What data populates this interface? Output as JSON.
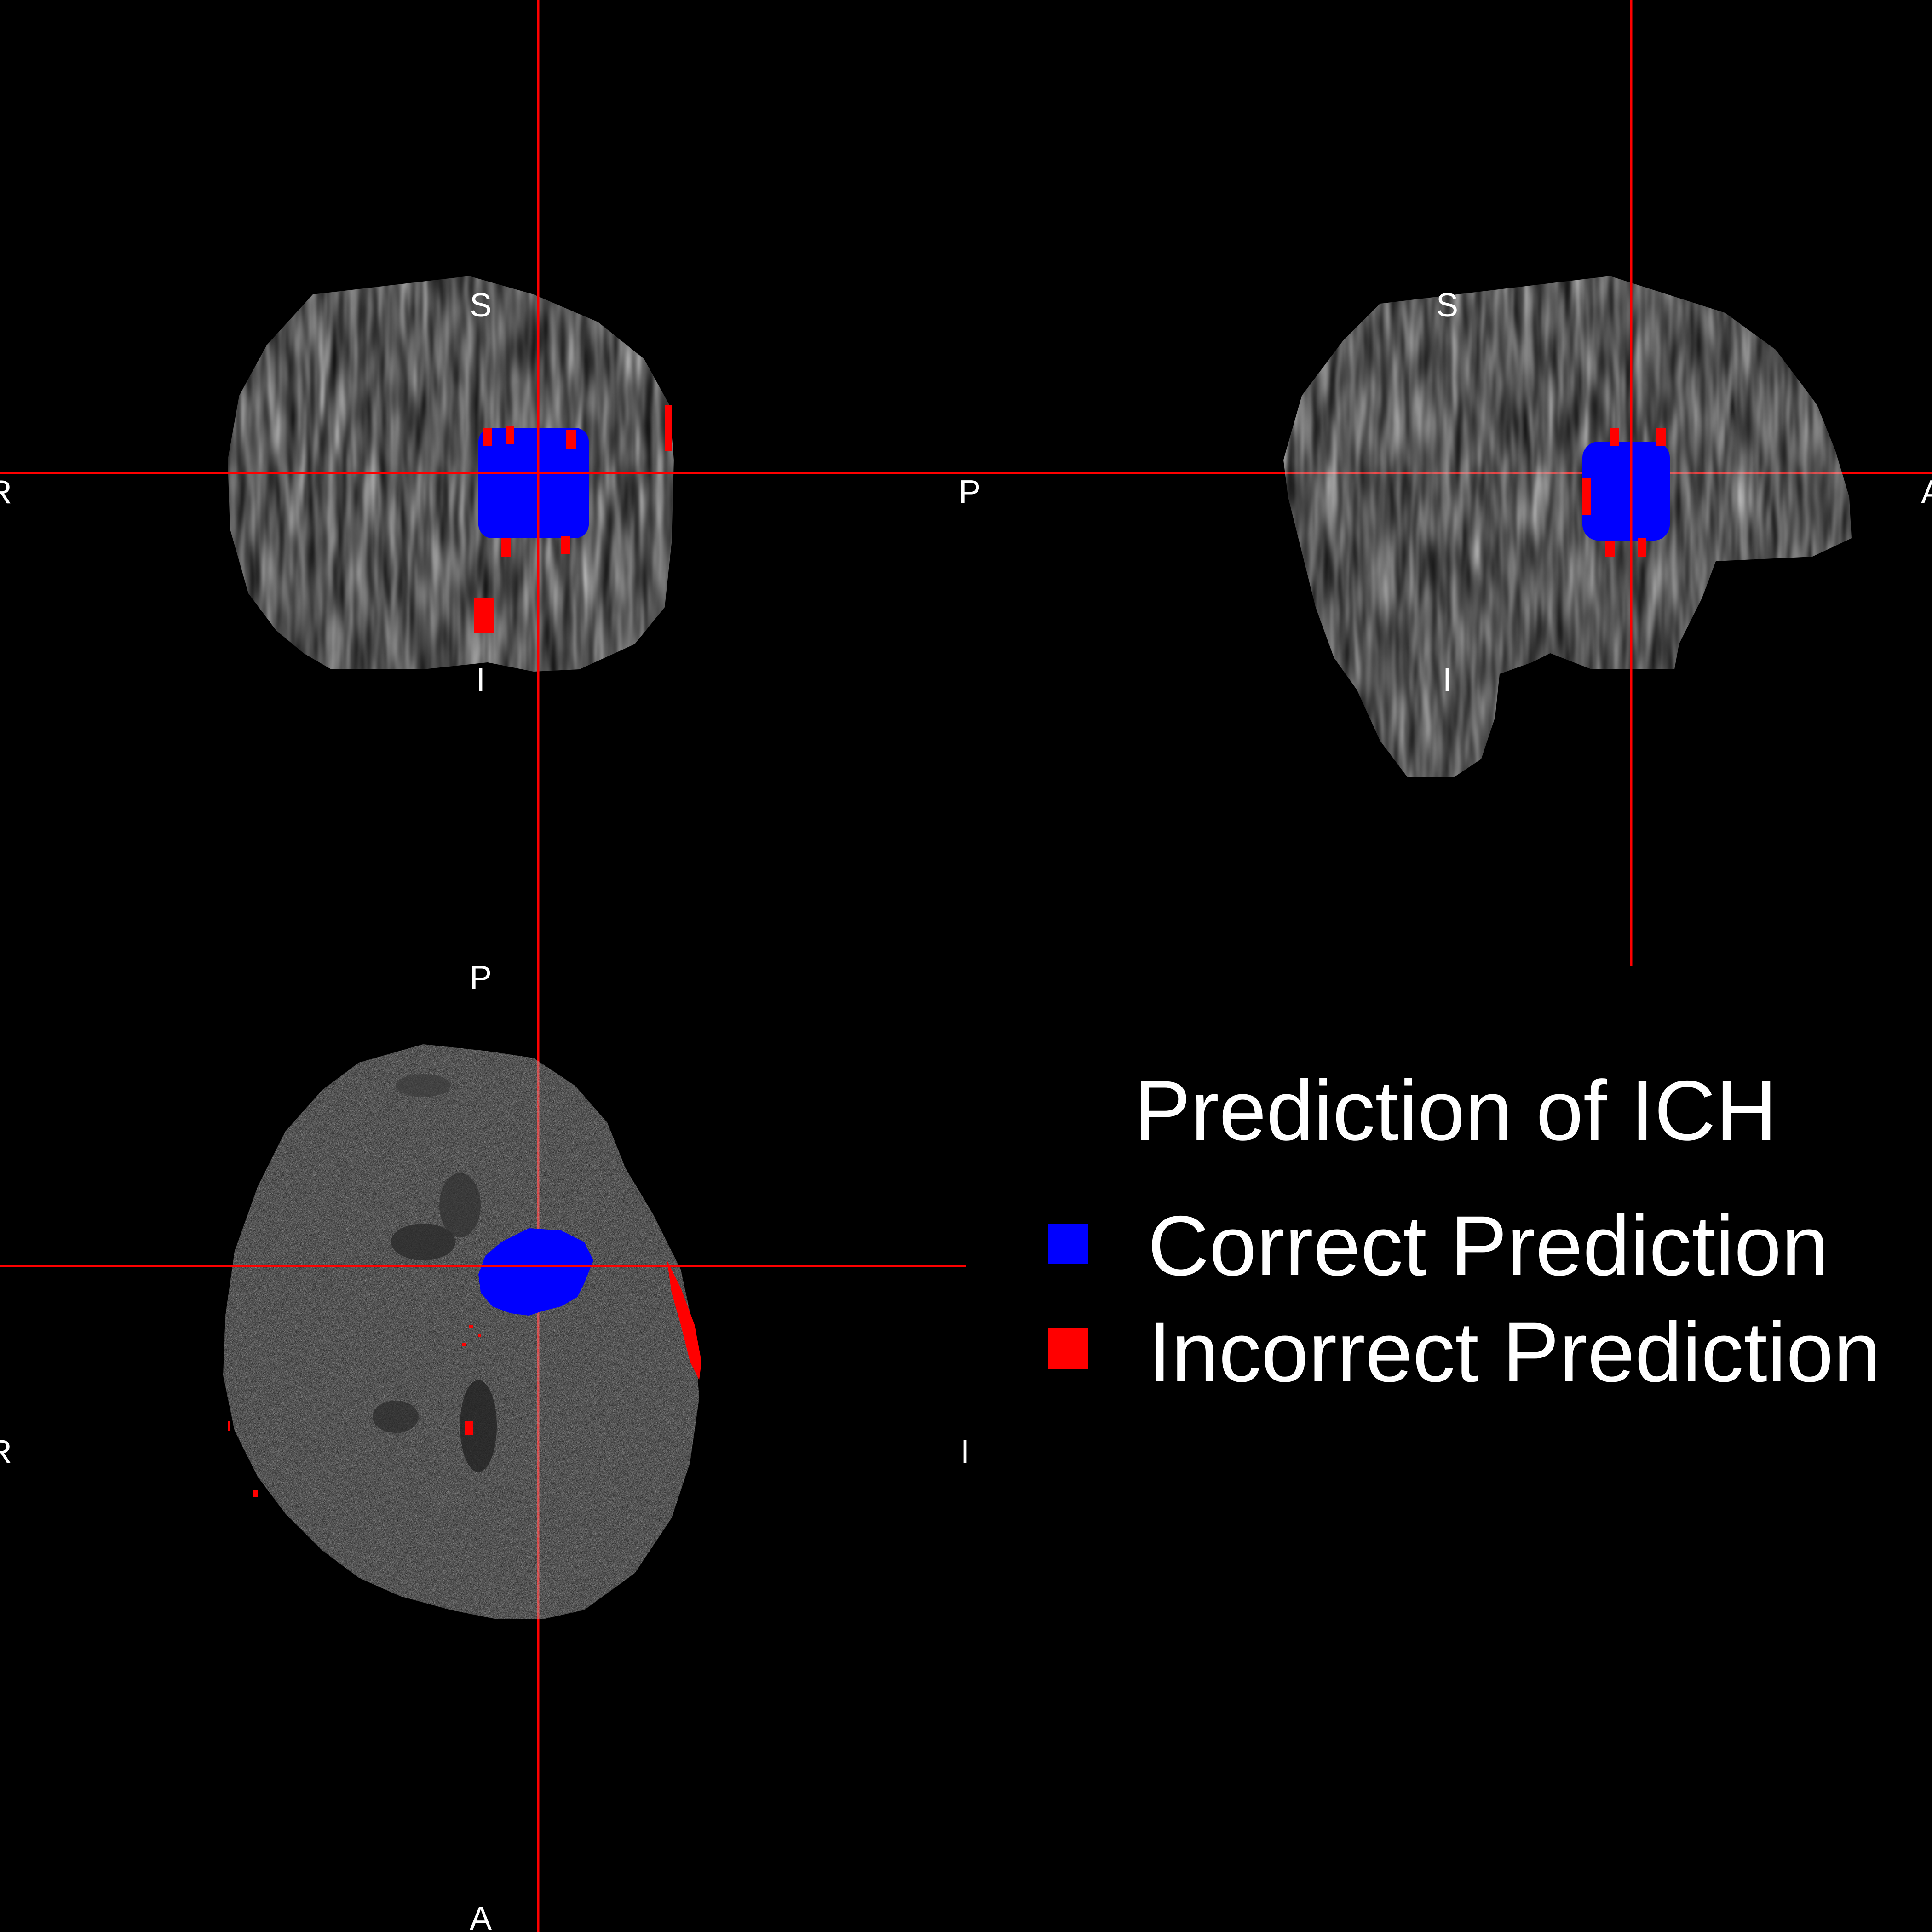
{
  "colors": {
    "background": "#000000",
    "crosshair": "#ff0000",
    "correct": "#0000ff",
    "incorrect": "#ff0000",
    "label": "#ffffff"
  },
  "panels": {
    "coronal": {
      "top": "S",
      "bottom": "I",
      "left": "R",
      "right": "P"
    },
    "sagittal": {
      "top": "S",
      "bottom": "I",
      "right": "A"
    },
    "axial": {
      "top": "P",
      "bottom": "A",
      "left": "R",
      "right": "I"
    }
  },
  "legend": {
    "title": "Prediction of ICH",
    "items": [
      {
        "label": "Correct Prediction",
        "color": "#0000ff"
      },
      {
        "label": "Incorrect Prediction",
        "color": "#ff0000"
      }
    ]
  }
}
